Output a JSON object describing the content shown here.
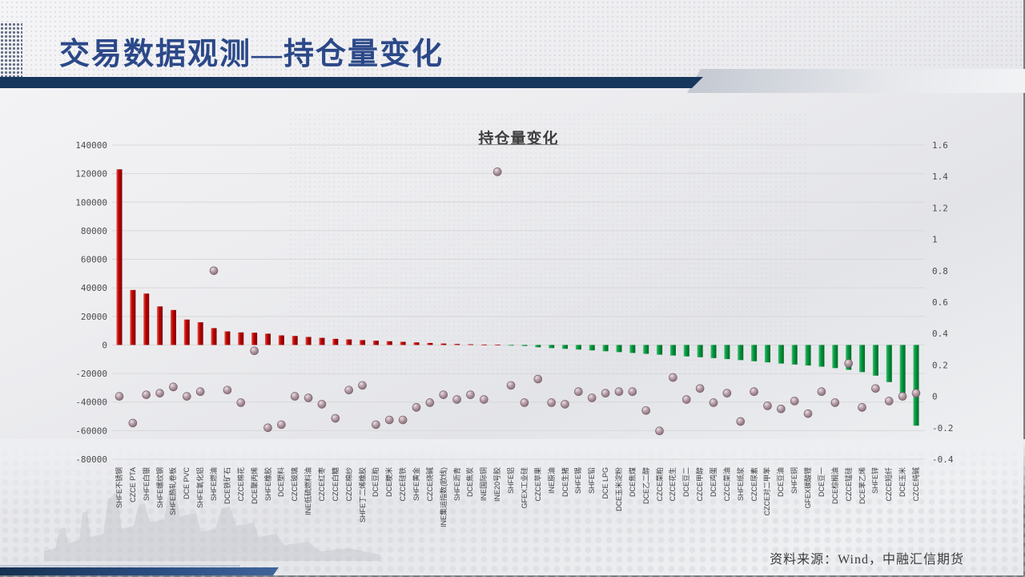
{
  "header": {
    "title": "交易数据观测—持仓量变化"
  },
  "footer": {
    "source": "资料来源：Wind，中融汇信期货"
  },
  "chart_data": {
    "type": "combo_bar_scatter",
    "title": "持仓量变化",
    "legend": "none",
    "grid": true,
    "categories": [
      "SHFE不锈钢",
      "CZCE PTA",
      "SHFE白银",
      "SHFE螺纹钢",
      "SHFE热轧卷板",
      "DCE PVC",
      "SHFE氧化铝",
      "SHFE燃油",
      "DCE铁矿石",
      "CZCE棉花",
      "DCE聚丙烯",
      "SHFE橡胶",
      "DCE塑料",
      "CZCE玻璃",
      "INE低硫燃料油",
      "CZCE红枣",
      "CZCE白糖",
      "CZCE棉纱",
      "SHFE丁二烯橡胶",
      "DCE豆粕",
      "DCE粳米",
      "CZCE硅铁",
      "SHFE黄金",
      "CZCE烧碱",
      "INE集运指数(欧线)",
      "SHFE沥青",
      "DCE焦炭",
      "INE国际铜",
      "INE20号胶",
      "SHFE铝",
      "GFEX工业硅",
      "CZCE苹果",
      "INE原油",
      "DCE生猪",
      "SHFE锡",
      "SHFE铅",
      "DCE LPG",
      "DCE玉米淀粉",
      "DCE焦煤",
      "DCE乙二醇",
      "CZCE菜粕",
      "CZCE花生",
      "DCE豆二",
      "CZCE甲醇",
      "DCE鸡蛋",
      "CZCE菜油",
      "SHFE纸浆",
      "CZCE尿素",
      "CZCE对二甲苯",
      "DCE豆油",
      "SHFE铜",
      "GFEX碳酸锂",
      "DCE豆一",
      "DCE棕榈油",
      "CZCE锰硅",
      "DCE苯乙烯",
      "SHFE锌",
      "CZCE短纤",
      "DCE玉米",
      "CZCE纯碱"
    ],
    "series": [
      {
        "type": "bar",
        "axis": "left",
        "values": [
          123000,
          38500,
          36000,
          27000,
          24500,
          17800,
          15900,
          11800,
          9500,
          8800,
          8600,
          7900,
          6700,
          6300,
          5600,
          5000,
          4300,
          3900,
          3400,
          3000,
          2600,
          2200,
          1800,
          1400,
          1000,
          700,
          500,
          300,
          150,
          -200,
          -700,
          -1600,
          -2200,
          -2700,
          -3200,
          -3800,
          -4400,
          -5000,
          -5600,
          -6200,
          -6800,
          -7400,
          -8000,
          -8600,
          -9200,
          -9900,
          -10600,
          -11400,
          -12200,
          -13000,
          -13700,
          -14400,
          -15200,
          -16200,
          -17400,
          -19000,
          -21500,
          -26000,
          -35000,
          -56500
        ]
      },
      {
        "type": "scatter",
        "axis": "right",
        "values": [
          0.0,
          -0.17,
          0.01,
          0.02,
          0.06,
          0.0,
          0.03,
          0.8,
          0.04,
          -0.04,
          0.29,
          -0.2,
          -0.18,
          0.0,
          -0.01,
          -0.05,
          -0.14,
          0.04,
          0.07,
          -0.18,
          -0.15,
          -0.15,
          -0.07,
          -0.04,
          0.01,
          -0.02,
          0.01,
          -0.02,
          1.43,
          0.07,
          -0.04,
          0.11,
          -0.04,
          -0.05,
          0.03,
          -0.01,
          0.02,
          0.03,
          0.03,
          -0.09,
          -0.22,
          0.12,
          -0.02,
          0.05,
          -0.04,
          0.02,
          -0.16,
          0.03,
          -0.06,
          -0.08,
          -0.03,
          -0.11,
          0.03,
          -0.04,
          0.21,
          -0.07,
          0.05,
          -0.03,
          0.0,
          0.02
        ]
      }
    ],
    "left_axis": {
      "min": -80000,
      "max": 140000,
      "step": 20000,
      "ticks": [
        "140000",
        "120000",
        "100000",
        "80000",
        "60000",
        "40000",
        "20000",
        "0",
        "-20000",
        "-40000",
        "-60000",
        "-80000"
      ]
    },
    "right_axis": {
      "min": -0.4,
      "max": 1.6,
      "step": 0.2,
      "ticks": [
        "1.6",
        "1.4",
        "1.2",
        "1",
        "0.8",
        "0.6",
        "0.4",
        "0.2",
        "0",
        "-0.2",
        "-0.4"
      ]
    },
    "colors": {
      "bar_positive": "#c00000",
      "bar_negative": "#009a3c",
      "point": "#9b8289",
      "gridline": "#d8d8d8",
      "tick_text": "#4d4d4d"
    }
  }
}
